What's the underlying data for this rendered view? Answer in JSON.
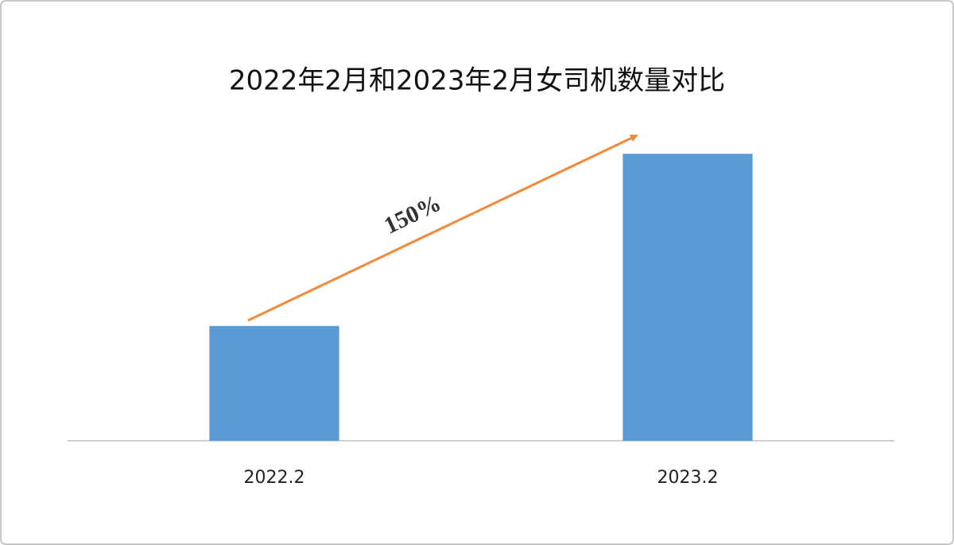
{
  "chart_data": {
    "type": "bar",
    "title": "2022年2月和2023年2月女司机数量对比",
    "categories": [
      "2022.2",
      "2023.2"
    ],
    "values": [
      1,
      2.5
    ],
    "color": "#5b9bd5",
    "ylim": [
      0,
      2.8
    ],
    "annotation": "150%",
    "annotation_color": "#f28a3a"
  }
}
